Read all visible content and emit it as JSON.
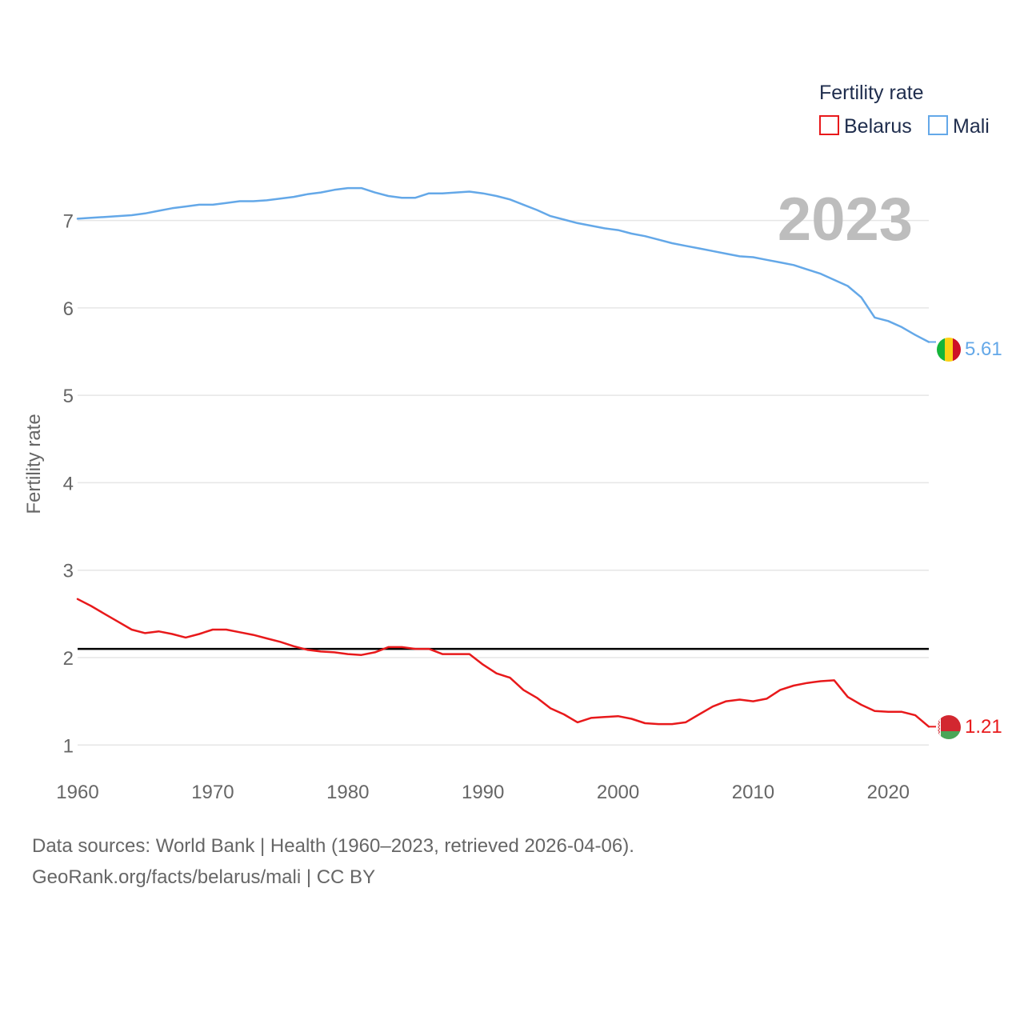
{
  "chart_data": {
    "type": "line",
    "ylabel": "Fertility rate",
    "xlabel": "",
    "year_label": "2023",
    "xlim": [
      1960,
      2023
    ],
    "ylim": [
      0.6,
      7.6
    ],
    "x_ticks": [
      1960,
      1970,
      1980,
      1990,
      2000,
      2010,
      2020
    ],
    "y_ticks": [
      1,
      2,
      3,
      4,
      5,
      6,
      7
    ],
    "grid": true,
    "legend": {
      "title": "Fertility rate",
      "position": "top-right",
      "entries": [
        "Belarus",
        "Mali"
      ]
    },
    "reference_line": {
      "y": 2.1,
      "color": "#000000"
    },
    "x": [
      1960,
      1961,
      1962,
      1963,
      1964,
      1965,
      1966,
      1967,
      1968,
      1969,
      1970,
      1971,
      1972,
      1973,
      1974,
      1975,
      1976,
      1977,
      1978,
      1979,
      1980,
      1981,
      1982,
      1983,
      1984,
      1985,
      1986,
      1987,
      1988,
      1989,
      1990,
      1991,
      1992,
      1993,
      1994,
      1995,
      1996,
      1997,
      1998,
      1999,
      2000,
      2001,
      2002,
      2003,
      2004,
      2005,
      2006,
      2007,
      2008,
      2009,
      2010,
      2011,
      2012,
      2013,
      2014,
      2015,
      2016,
      2017,
      2018,
      2019,
      2020,
      2021,
      2022,
      2023
    ],
    "series": [
      {
        "name": "Mali",
        "color": "#64a8e8",
        "end_label": "5.61",
        "values": [
          7.02,
          7.03,
          7.04,
          7.05,
          7.06,
          7.08,
          7.11,
          7.14,
          7.16,
          7.18,
          7.18,
          7.2,
          7.22,
          7.22,
          7.23,
          7.25,
          7.27,
          7.3,
          7.32,
          7.35,
          7.37,
          7.37,
          7.32,
          7.28,
          7.26,
          7.26,
          7.31,
          7.31,
          7.32,
          7.33,
          7.31,
          7.28,
          7.24,
          7.18,
          7.12,
          7.05,
          7.01,
          6.97,
          6.94,
          6.91,
          6.89,
          6.85,
          6.82,
          6.78,
          6.74,
          6.71,
          6.68,
          6.65,
          6.62,
          6.59,
          6.58,
          6.55,
          6.52,
          6.49,
          6.44,
          6.39,
          6.32,
          6.25,
          6.12,
          5.89,
          5.85,
          5.78,
          5.69,
          5.61
        ]
      },
      {
        "name": "Belarus",
        "color": "#e8191b",
        "end_label": "1.21",
        "values": [
          2.67,
          2.59,
          2.5,
          2.41,
          2.32,
          2.28,
          2.3,
          2.27,
          2.23,
          2.27,
          2.32,
          2.32,
          2.29,
          2.26,
          2.22,
          2.18,
          2.13,
          2.09,
          2.07,
          2.06,
          2.04,
          2.03,
          2.06,
          2.12,
          2.12,
          2.1,
          2.1,
          2.04,
          2.04,
          2.04,
          1.92,
          1.82,
          1.77,
          1.63,
          1.54,
          1.42,
          1.35,
          1.26,
          1.31,
          1.32,
          1.33,
          1.3,
          1.25,
          1.24,
          1.24,
          1.26,
          1.35,
          1.44,
          1.5,
          1.52,
          1.5,
          1.53,
          1.63,
          1.68,
          1.71,
          1.73,
          1.74,
          1.55,
          1.46,
          1.39,
          1.38,
          1.38,
          1.34,
          1.21
        ]
      }
    ]
  },
  "source": {
    "line1": "Data sources: World Bank | Health (1960–2023, retrieved 2026-04-06).",
    "line2": "GeoRank.org/facts/belarus/mali | CC BY"
  }
}
